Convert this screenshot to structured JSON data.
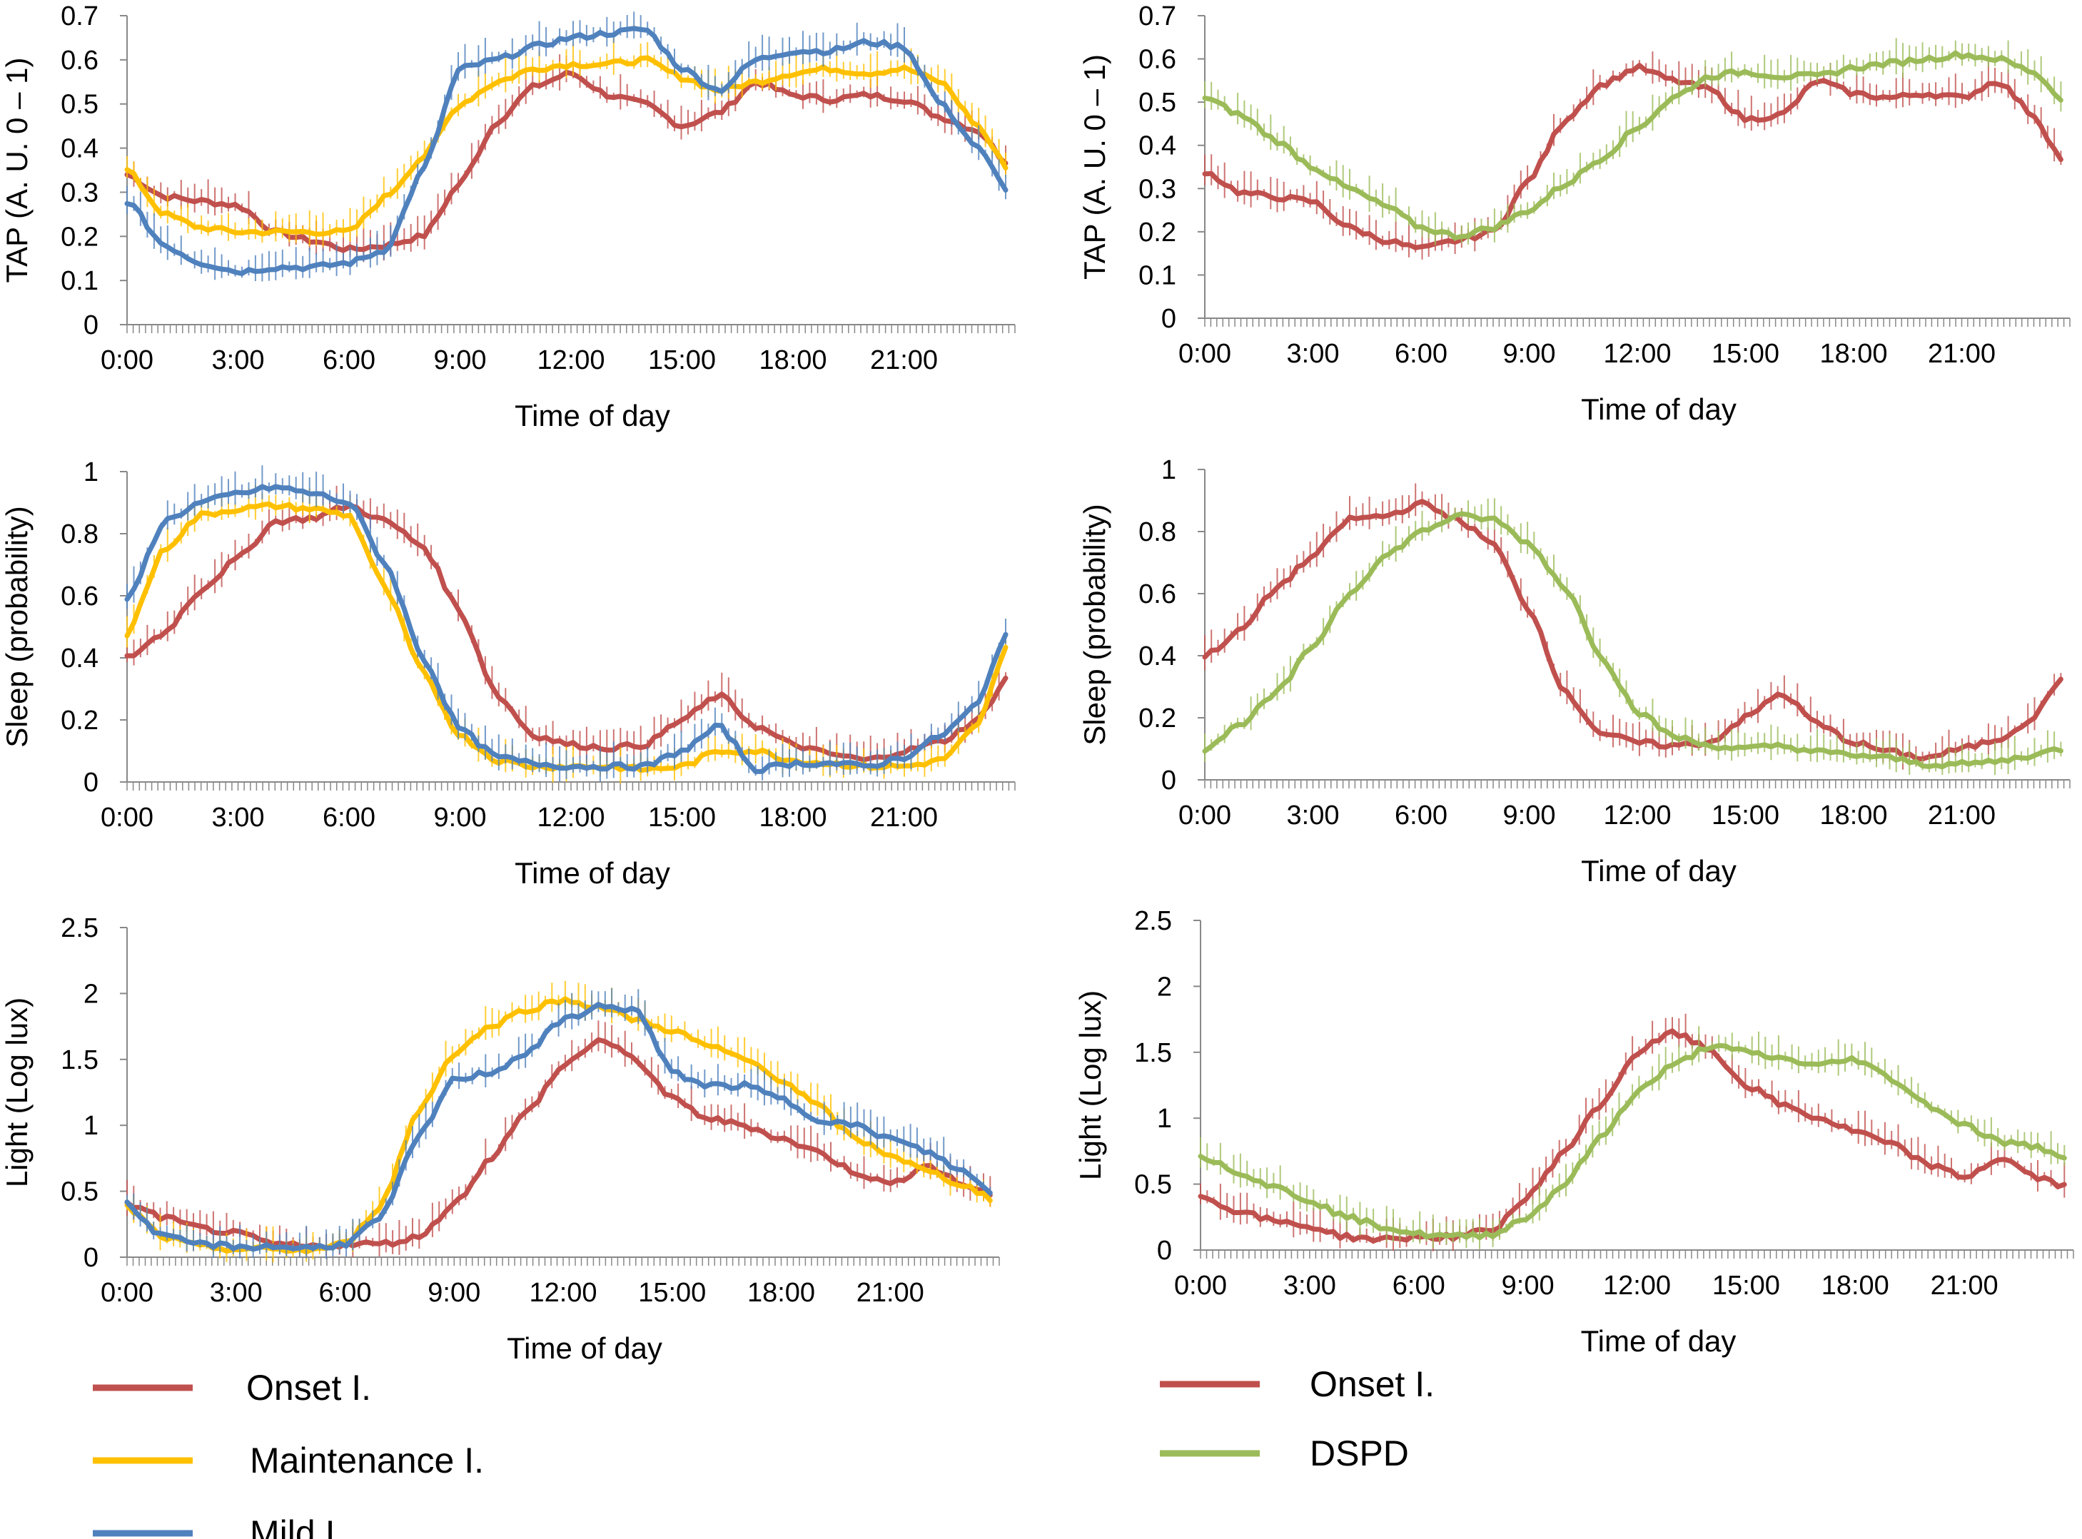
{
  "colors": {
    "onset": "#c0504d",
    "maintenance": "#ffc000",
    "mild": "#4f81bd",
    "dspd": "#9bbb59"
  },
  "legends": {
    "left": [
      {
        "label": "Onset I.",
        "color_key": "onset"
      },
      {
        "label": "Maintenance I.",
        "color_key": "maintenance"
      },
      {
        "label": "Mild I.",
        "color_key": "mild"
      }
    ],
    "right": [
      {
        "label": "Onset I.",
        "color_key": "onset"
      },
      {
        "label": "DSPD",
        "color_key": "dspd"
      }
    ]
  },
  "chart_data": [
    {
      "id": "tap-left",
      "type": "line",
      "xlabel": "Time of day",
      "ylabel": "TAP (A. U. 0 – 1)",
      "x_hours": [
        0,
        1,
        2,
        3,
        4,
        5,
        6,
        7,
        8,
        9,
        10,
        11,
        12,
        13,
        14,
        15,
        16,
        17,
        18,
        19,
        20,
        21,
        22,
        23,
        23.75
      ],
      "xticks": [
        "0:00",
        "3:00",
        "6:00",
        "9:00",
        "12:00",
        "15:00",
        "18:00",
        "21:00"
      ],
      "yticks": [
        "0",
        "0.1",
        "0.2",
        "0.3",
        "0.4",
        "0.5",
        "0.6",
        "0.7"
      ],
      "ylim": [
        0,
        0.7
      ],
      "series": [
        {
          "name": "Onset I.",
          "color_key": "onset",
          "values": [
            0.34,
            0.29,
            0.28,
            0.27,
            0.21,
            0.19,
            0.17,
            0.18,
            0.2,
            0.32,
            0.46,
            0.54,
            0.57,
            0.52,
            0.5,
            0.45,
            0.48,
            0.55,
            0.52,
            0.51,
            0.52,
            0.51,
            0.47,
            0.44,
            0.37
          ]
        },
        {
          "name": "Maintenance I.",
          "color_key": "maintenance",
          "values": [
            0.35,
            0.25,
            0.22,
            0.21,
            0.21,
            0.21,
            0.21,
            0.29,
            0.38,
            0.5,
            0.55,
            0.58,
            0.59,
            0.59,
            0.6,
            0.56,
            0.53,
            0.55,
            0.57,
            0.58,
            0.57,
            0.58,
            0.55,
            0.45,
            0.36
          ]
        },
        {
          "name": "Mild I.",
          "color_key": "mild",
          "values": [
            0.28,
            0.18,
            0.14,
            0.12,
            0.13,
            0.13,
            0.14,
            0.17,
            0.35,
            0.58,
            0.6,
            0.63,
            0.65,
            0.66,
            0.67,
            0.58,
            0.53,
            0.6,
            0.62,
            0.62,
            0.64,
            0.63,
            0.5,
            0.4,
            0.31
          ]
        }
      ]
    },
    {
      "id": "tap-right",
      "type": "line",
      "xlabel": "Time of day",
      "ylabel": "TAP (A. U. 0 – 1)",
      "x_hours": [
        0,
        1,
        2,
        3,
        4,
        5,
        6,
        7,
        8,
        9,
        10,
        11,
        12,
        13,
        14,
        15,
        16,
        17,
        18,
        19,
        20,
        21,
        22,
        23,
        23.75
      ],
      "xticks": [
        "0:00",
        "3:00",
        "6:00",
        "9:00",
        "12:00",
        "15:00",
        "18:00",
        "21:00"
      ],
      "yticks": [
        "0",
        "0.1",
        "0.2",
        "0.3",
        "0.4",
        "0.5",
        "0.6",
        "0.7"
      ],
      "ylim": [
        0,
        0.7
      ],
      "series": [
        {
          "name": "Onset I.",
          "color_key": "onset",
          "values": [
            0.34,
            0.29,
            0.28,
            0.27,
            0.21,
            0.18,
            0.16,
            0.18,
            0.2,
            0.32,
            0.46,
            0.54,
            0.58,
            0.55,
            0.53,
            0.46,
            0.47,
            0.55,
            0.52,
            0.51,
            0.52,
            0.51,
            0.55,
            0.47,
            0.37
          ]
        },
        {
          "name": "DSPD",
          "color_key": "dspd",
          "values": [
            0.51,
            0.47,
            0.41,
            0.35,
            0.3,
            0.26,
            0.21,
            0.19,
            0.21,
            0.25,
            0.31,
            0.37,
            0.44,
            0.51,
            0.56,
            0.57,
            0.56,
            0.56,
            0.58,
            0.59,
            0.6,
            0.61,
            0.6,
            0.57,
            0.51
          ]
        }
      ]
    },
    {
      "id": "sleep-left",
      "type": "line",
      "xlabel": "Time of day",
      "ylabel": "Sleep (probability)",
      "x_hours": [
        0,
        1,
        2,
        3,
        4,
        5,
        6,
        7,
        8,
        9,
        10,
        11,
        12,
        13,
        14,
        15,
        16,
        17,
        18,
        19,
        20,
        21,
        22,
        23,
        23.75
      ],
      "xticks": [
        "0:00",
        "3:00",
        "6:00",
        "9:00",
        "12:00",
        "15:00",
        "18:00",
        "21:00"
      ],
      "yticks": [
        "0",
        "0.2",
        "0.4",
        "0.6",
        "0.8",
        "1"
      ],
      "ylim": [
        0,
        1
      ],
      "series": [
        {
          "name": "Onset I.",
          "color_key": "onset",
          "values": [
            0.4,
            0.48,
            0.62,
            0.72,
            0.84,
            0.85,
            0.89,
            0.84,
            0.76,
            0.55,
            0.28,
            0.15,
            0.12,
            0.11,
            0.12,
            0.2,
            0.28,
            0.18,
            0.12,
            0.09,
            0.07,
            0.1,
            0.13,
            0.2,
            0.33
          ]
        },
        {
          "name": "Maintenance I.",
          "color_key": "maintenance",
          "values": [
            0.48,
            0.75,
            0.86,
            0.88,
            0.89,
            0.88,
            0.86,
            0.62,
            0.35,
            0.15,
            0.07,
            0.05,
            0.05,
            0.05,
            0.04,
            0.05,
            0.1,
            0.1,
            0.07,
            0.06,
            0.05,
            0.05,
            0.07,
            0.18,
            0.43
          ]
        },
        {
          "name": "Mild I.",
          "color_key": "mild",
          "values": [
            0.58,
            0.84,
            0.9,
            0.93,
            0.95,
            0.93,
            0.9,
            0.7,
            0.4,
            0.17,
            0.08,
            0.06,
            0.05,
            0.05,
            0.05,
            0.1,
            0.18,
            0.04,
            0.06,
            0.06,
            0.05,
            0.08,
            0.15,
            0.25,
            0.48
          ]
        }
      ]
    },
    {
      "id": "sleep-right",
      "type": "line",
      "xlabel": "Time of day",
      "ylabel": "Sleep (probability)",
      "x_hours": [
        0,
        1,
        2,
        3,
        4,
        5,
        6,
        7,
        8,
        9,
        10,
        11,
        12,
        13,
        14,
        15,
        16,
        17,
        18,
        19,
        20,
        21,
        22,
        23,
        23.75
      ],
      "xticks": [
        "0:00",
        "3:00",
        "6:00",
        "9:00",
        "12:00",
        "15:00",
        "18:00",
        "21:00"
      ],
      "yticks": [
        "0",
        "0.2",
        "0.4",
        "0.6",
        "0.8",
        "1"
      ],
      "ylim": [
        0,
        1
      ],
      "series": [
        {
          "name": "Onset I.",
          "color_key": "onset",
          "values": [
            0.4,
            0.48,
            0.62,
            0.72,
            0.84,
            0.85,
            0.89,
            0.84,
            0.76,
            0.55,
            0.28,
            0.15,
            0.12,
            0.11,
            0.12,
            0.2,
            0.28,
            0.18,
            0.12,
            0.09,
            0.07,
            0.1,
            0.13,
            0.2,
            0.33
          ]
        },
        {
          "name": "DSPD",
          "color_key": "dspd",
          "values": [
            0.1,
            0.18,
            0.28,
            0.43,
            0.6,
            0.72,
            0.8,
            0.85,
            0.84,
            0.76,
            0.62,
            0.4,
            0.22,
            0.14,
            0.11,
            0.1,
            0.11,
            0.09,
            0.08,
            0.07,
            0.05,
            0.05,
            0.06,
            0.08,
            0.1
          ]
        }
      ]
    },
    {
      "id": "light-left",
      "type": "line",
      "xlabel": "Time of day",
      "ylabel": "Light (Log lux)",
      "x_hours": [
        0,
        1,
        2,
        3,
        4,
        5,
        6,
        7,
        8,
        9,
        10,
        11,
        12,
        13,
        14,
        15,
        16,
        17,
        18,
        19,
        20,
        21,
        22,
        23,
        23.75
      ],
      "xticks": [
        "0:00",
        "3:00",
        "6:00",
        "9:00",
        "12:00",
        "15:00",
        "18:00",
        "21:00"
      ],
      "yticks": [
        "0",
        "0.5",
        "1",
        "1.5",
        "2",
        "2.5"
      ],
      "ylim": [
        0,
        2.5
      ],
      "series": [
        {
          "name": "Onset I.",
          "color_key": "onset",
          "values": [
            0.4,
            0.3,
            0.22,
            0.18,
            0.1,
            0.08,
            0.1,
            0.1,
            0.15,
            0.4,
            0.75,
            1.1,
            1.45,
            1.65,
            1.5,
            1.2,
            1.05,
            1.0,
            0.9,
            0.8,
            0.65,
            0.55,
            0.7,
            0.55,
            0.48
          ]
        },
        {
          "name": "Maintenance I.",
          "color_key": "maintenance",
          "values": [
            0.38,
            0.15,
            0.08,
            0.06,
            0.06,
            0.05,
            0.1,
            0.4,
            1.1,
            1.55,
            1.75,
            1.88,
            1.95,
            1.9,
            1.8,
            1.72,
            1.6,
            1.5,
            1.35,
            1.15,
            0.9,
            0.78,
            0.65,
            0.55,
            0.45
          ]
        },
        {
          "name": "Mild I.",
          "color_key": "mild",
          "values": [
            0.4,
            0.15,
            0.1,
            0.08,
            0.08,
            0.07,
            0.1,
            0.3,
            0.9,
            1.35,
            1.4,
            1.55,
            1.8,
            1.9,
            1.88,
            1.4,
            1.3,
            1.3,
            1.2,
            1.05,
            1.0,
            0.9,
            0.8,
            0.65,
            0.5
          ]
        }
      ]
    },
    {
      "id": "light-right",
      "type": "line",
      "xlabel": "Time of day",
      "ylabel": "Light (Log lux)",
      "x_hours": [
        0,
        1,
        2,
        3,
        4,
        5,
        6,
        7,
        8,
        9,
        10,
        11,
        12,
        13,
        14,
        15,
        16,
        17,
        18,
        19,
        20,
        21,
        22,
        23,
        23.75
      ],
      "xticks": [
        "0:00",
        "3:00",
        "6:00",
        "9:00",
        "12:00",
        "15:00",
        "18:00",
        "21:00"
      ],
      "yticks": [
        "0",
        "0.5",
        "1",
        "1.5",
        "2",
        "2.5"
      ],
      "ylim": [
        0,
        2.5
      ],
      "series": [
        {
          "name": "Onset I.",
          "color_key": "onset",
          "values": [
            0.4,
            0.3,
            0.22,
            0.18,
            0.1,
            0.08,
            0.1,
            0.1,
            0.15,
            0.4,
            0.75,
            1.1,
            1.5,
            1.65,
            1.52,
            1.25,
            1.1,
            1.0,
            0.9,
            0.8,
            0.65,
            0.55,
            0.7,
            0.55,
            0.48
          ]
        },
        {
          "name": "DSPD",
          "color_key": "dspd",
          "values": [
            0.72,
            0.6,
            0.48,
            0.38,
            0.25,
            0.18,
            0.12,
            0.1,
            0.12,
            0.25,
            0.5,
            0.85,
            1.2,
            1.4,
            1.55,
            1.5,
            1.45,
            1.4,
            1.45,
            1.3,
            1.1,
            0.95,
            0.82,
            0.78,
            0.72
          ]
        }
      ]
    }
  ]
}
